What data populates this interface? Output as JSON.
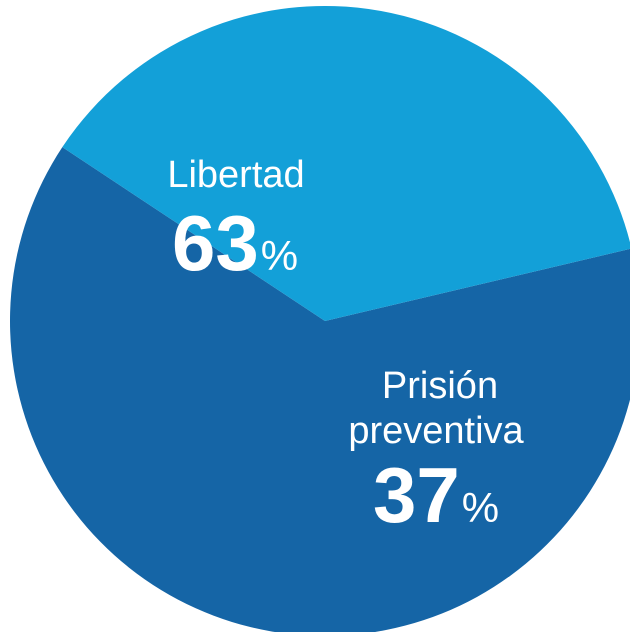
{
  "chart_data": {
    "type": "pie",
    "title": "",
    "slices": [
      {
        "label_lines": [
          "Libertad"
        ],
        "value": 63,
        "value_text": "63",
        "unit": "%",
        "color": "#1565a6"
      },
      {
        "label_lines": [
          "Prisión",
          "preventiva"
        ],
        "value": 37,
        "value_text": "37",
        "unit": "%",
        "color": "#13a0d8"
      }
    ],
    "legend": "none",
    "labels": "inside-slices"
  }
}
